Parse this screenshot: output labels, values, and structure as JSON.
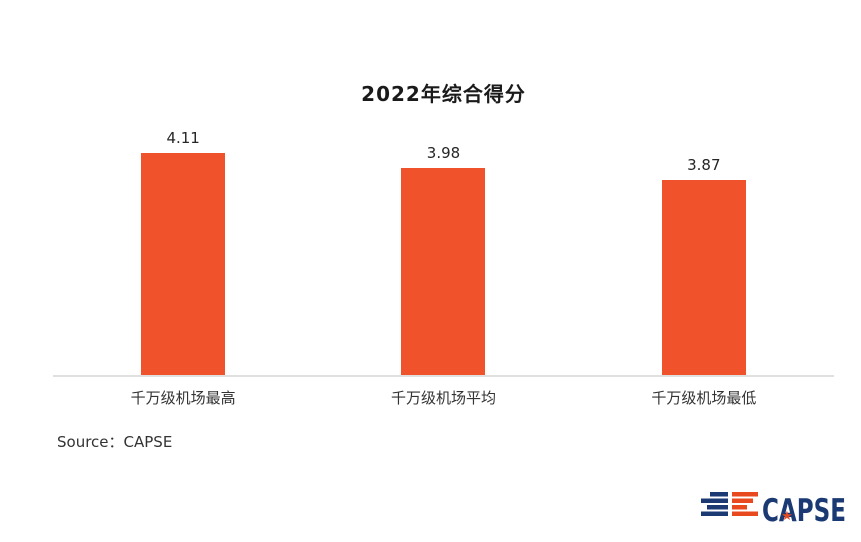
{
  "page": {
    "background": "#FFFFFF"
  },
  "chart": {
    "axis_color": "#E0E0E0",
    "text_color": "#262626"
  },
  "chart_data": {
    "type": "bar",
    "title": "2022年综合得分",
    "categories": [
      "千万级机场最高",
      "千万级机场平均",
      "千万级机场最低"
    ],
    "values": [
      4.11,
      3.98,
      3.87
    ],
    "value_labels": [
      "4.11",
      "3.98",
      "3.87"
    ],
    "xlabel": "",
    "ylabel": "",
    "ylim": [
      2.1,
      4.35
    ],
    "grid": false,
    "legend": false,
    "bar_color": "#F0532B"
  },
  "source": {
    "label": "Source：CAPSE"
  },
  "logo": {
    "text": "CAPSE",
    "star": "★",
    "colors": {
      "navy": "#1B3A74",
      "orange": "#E8491F"
    }
  }
}
